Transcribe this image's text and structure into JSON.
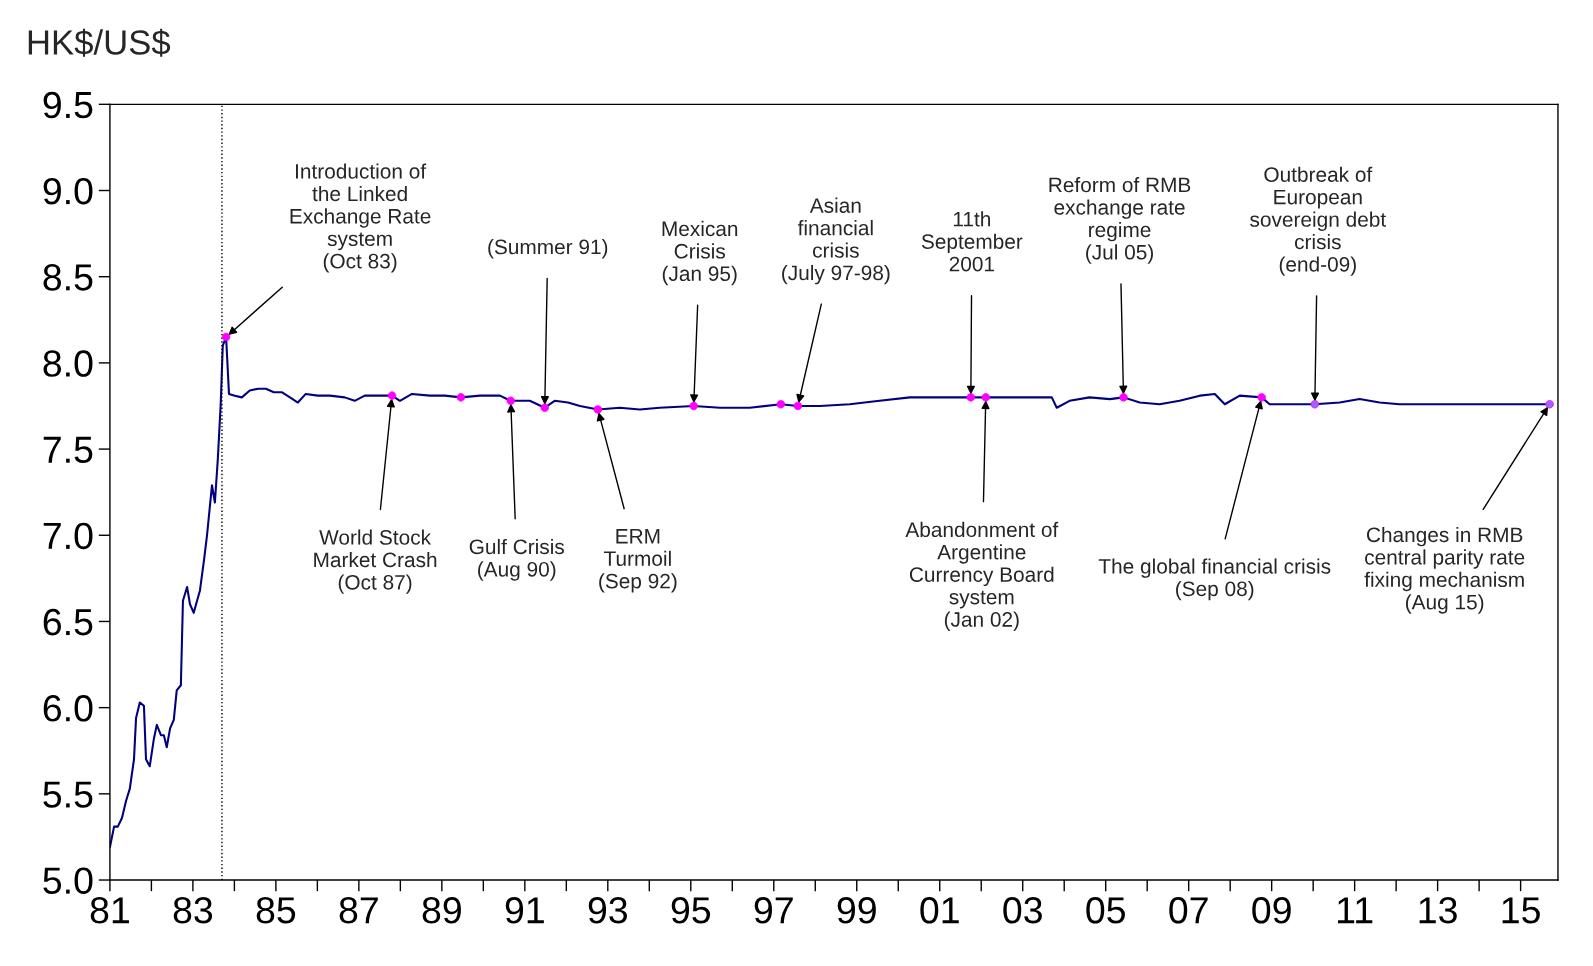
{
  "chart_data": {
    "type": "line",
    "ylabel": "HK$/US$",
    "xlim": [
      1981,
      2015.9
    ],
    "ylim": [
      5.0,
      9.5
    ],
    "xticks": [
      {
        "value": 1981,
        "label": "81"
      },
      {
        "value": 1982,
        "label": null
      },
      {
        "value": 1983,
        "label": "83"
      },
      {
        "value": 1984,
        "label": null
      },
      {
        "value": 1985,
        "label": "85"
      },
      {
        "value": 1986,
        "label": null
      },
      {
        "value": 1987,
        "label": "87"
      },
      {
        "value": 1988,
        "label": null
      },
      {
        "value": 1989,
        "label": "89"
      },
      {
        "value": 1990,
        "label": null
      },
      {
        "value": 1991,
        "label": "91"
      },
      {
        "value": 1992,
        "label": null
      },
      {
        "value": 1993,
        "label": "93"
      },
      {
        "value": 1994,
        "label": null
      },
      {
        "value": 1995,
        "label": "95"
      },
      {
        "value": 1996,
        "label": null
      },
      {
        "value": 1997,
        "label": "97"
      },
      {
        "value": 1998,
        "label": null
      },
      {
        "value": 1999,
        "label": "99"
      },
      {
        "value": 2000,
        "label": null
      },
      {
        "value": 2001,
        "label": "01"
      },
      {
        "value": 2002,
        "label": null
      },
      {
        "value": 2003,
        "label": "03"
      },
      {
        "value": 2004,
        "label": null
      },
      {
        "value": 2005,
        "label": "05"
      },
      {
        "value": 2006,
        "label": null
      },
      {
        "value": 2007,
        "label": "07"
      },
      {
        "value": 2008,
        "label": null
      },
      {
        "value": 2009,
        "label": "09"
      },
      {
        "value": 2010,
        "label": null
      },
      {
        "value": 2011,
        "label": "11"
      },
      {
        "value": 2012,
        "label": null
      },
      {
        "value": 2013,
        "label": "13"
      },
      {
        "value": 2014,
        "label": null
      },
      {
        "value": 2015,
        "label": "15"
      }
    ],
    "yticks": [
      {
        "value": 5,
        "label": "5.0"
      },
      {
        "value": 5.5,
        "label": "5.5"
      },
      {
        "value": 6,
        "label": "6.0"
      },
      {
        "value": 6.5,
        "label": "6.5"
      },
      {
        "value": 7,
        "label": "7.0"
      },
      {
        "value": 7.5,
        "label": "7.5"
      },
      {
        "value": 8,
        "label": "8.0"
      },
      {
        "value": 8.5,
        "label": "8.5"
      },
      {
        "value": 9,
        "label": "9.0"
      },
      {
        "value": 9.5,
        "label": "9.5"
      }
    ],
    "grid": false,
    "series": [
      {
        "type": "line",
        "color": "#000080",
        "marker": "none",
        "line_style": "solid",
        "x": [
          1981.0,
          1981.1,
          1981.19,
          1981.29,
          1981.39,
          1981.48,
          1981.58,
          1981.63,
          1981.72,
          1981.82,
          1981.87,
          1981.96,
          1982.06,
          1982.13,
          1982.23,
          1982.3,
          1982.37,
          1982.45,
          1982.54,
          1982.61,
          1982.71,
          1982.76,
          1982.86,
          1982.93,
          1983.02,
          1983.1,
          1983.17,
          1983.27,
          1983.34,
          1983.46,
          1983.53,
          1983.6,
          1983.67,
          1983.72,
          1983.8,
          1983.87,
          1984.01,
          1984.18,
          1984.37,
          1984.57,
          1984.76,
          1984.95,
          1985.14,
          1985.34,
          1985.53,
          1985.72,
          1986.01,
          1986.3,
          1986.66,
          1986.9,
          1987.14,
          1987.51,
          1987.8,
          1987.99,
          1988.28,
          1988.71,
          1989.07,
          1989.46,
          1989.92,
          1990.4,
          1990.66,
          1991.12,
          1991.48,
          1991.72,
          1992.04,
          1992.33,
          1992.76,
          1993.29,
          1993.77,
          1994.25,
          1995.07,
          1995.7,
          1996.42,
          1997.17,
          1997.58,
          1998.11,
          1998.83,
          1999.55,
          2000.28,
          2001.0,
          2001.75,
          2002.11,
          2002.45,
          2003.17,
          2003.7,
          2003.82,
          2004.13,
          2004.61,
          2005.1,
          2005.43,
          2005.82,
          2006.3,
          2006.78,
          2007.27,
          2007.63,
          2007.87,
          2008.23,
          2008.76,
          2008.95,
          2009.43,
          2010.04,
          2010.64,
          2011.12,
          2011.6,
          2012.08,
          2013.05,
          2014.01,
          2014.98,
          2015.7
        ],
        "values": [
          5.19,
          5.31,
          5.31,
          5.36,
          5.46,
          5.53,
          5.7,
          5.94,
          6.03,
          6.01,
          5.7,
          5.66,
          5.82,
          5.9,
          5.84,
          5.84,
          5.77,
          5.88,
          5.93,
          6.1,
          6.13,
          6.62,
          6.7,
          6.6,
          6.55,
          6.62,
          6.68,
          6.86,
          7.0,
          7.29,
          7.19,
          7.44,
          7.76,
          8.1,
          8.15,
          7.82,
          7.81,
          7.8,
          7.84,
          7.85,
          7.85,
          7.83,
          7.83,
          7.8,
          7.77,
          7.82,
          7.81,
          7.81,
          7.8,
          7.78,
          7.81,
          7.81,
          7.81,
          7.78,
          7.82,
          7.81,
          7.81,
          7.8,
          7.81,
          7.81,
          7.78,
          7.78,
          7.74,
          7.78,
          7.77,
          7.75,
          7.73,
          7.74,
          7.73,
          7.74,
          7.75,
          7.74,
          7.74,
          7.76,
          7.75,
          7.75,
          7.76,
          7.78,
          7.8,
          7.8,
          7.8,
          7.8,
          7.8,
          7.8,
          7.8,
          7.74,
          7.78,
          7.8,
          7.79,
          7.8,
          7.77,
          7.76,
          7.78,
          7.81,
          7.82,
          7.76,
          7.81,
          7.8,
          7.76,
          7.76,
          7.76,
          7.77,
          7.79,
          7.77,
          7.76,
          7.76,
          7.76,
          7.76,
          7.76
        ]
      },
      {
        "type": "scatter",
        "marker": "circle",
        "color": "#ff00ff",
        "colors": [
          "#ff00ff",
          "#ff00ff",
          "#ff00ff",
          "#ff00ff",
          "#ff00ff",
          "#ff00ff",
          "#ff00ff",
          "#ff00ff",
          "#ff00ff",
          "#ff00ff",
          "#ff00ff",
          "#ff00ff",
          "#ff00ff",
          "#9966ff",
          "#9966ff"
        ],
        "x": [
          1983.8,
          1987.8,
          1989.46,
          1990.66,
          1991.48,
          1992.76,
          1995.07,
          1997.17,
          1997.58,
          2001.75,
          2002.11,
          2005.43,
          2008.76,
          2010.04,
          2015.7
        ],
        "values": [
          8.15,
          7.81,
          7.8,
          7.78,
          7.74,
          7.73,
          7.75,
          7.76,
          7.75,
          7.8,
          7.8,
          7.8,
          7.8,
          7.76,
          7.76
        ]
      }
    ],
    "ref_lines": [
      {
        "axis": "x",
        "value": 1983.7,
        "line_style": "dotted",
        "color": "#000000"
      }
    ],
    "annotations": [
      {
        "text": "Introduction of\nthe Linked\nExchange Rate\nsystem\n(Oct 83)",
        "x": 1983.8,
        "y": 8.15
      },
      {
        "text": "World Stock\nMarket Crash\n(Oct 87)",
        "x": 1987.8,
        "y": 7.81
      },
      {
        "text": "Gulf Crisis\n(Aug 90)",
        "x": 1990.66,
        "y": 7.78
      },
      {
        "text": "(Summer 91)",
        "x": 1991.48,
        "y": 7.74
      },
      {
        "text": "ERM\nTurmoil\n(Sep 92)",
        "x": 1992.76,
        "y": 7.73
      },
      {
        "text": "Mexican\nCrisis\n(Jan 95)",
        "x": 1995.07,
        "y": 7.75
      },
      {
        "text": "Asian\nfinancial\ncrisis\n(July 97-98)",
        "x": 1997.58,
        "y": 7.75
      },
      {
        "text": "11th\nSeptember\n2001",
        "x": 2001.75,
        "y": 7.8
      },
      {
        "text": "Abandonment of\nArgentine\nCurrency Board\nsystem\n(Jan 02)",
        "x": 2002.11,
        "y": 7.8
      },
      {
        "text": "Reform of RMB\nexchange rate\nregime\n(Jul 05)",
        "x": 2005.43,
        "y": 7.8
      },
      {
        "text": "Outbreak of\nEuropean\nsovereign debt\ncrisis\n(end-09)",
        "x": 2010.04,
        "y": 7.76
      },
      {
        "text": "The global financial crisis\n(Sep 08)",
        "x": 2008.76,
        "y": 7.8
      },
      {
        "text": "Changes in RMB\ncentral parity rate\nfixing mechanism\n(Aug 15)",
        "x": 2015.7,
        "y": 7.76
      }
    ]
  }
}
